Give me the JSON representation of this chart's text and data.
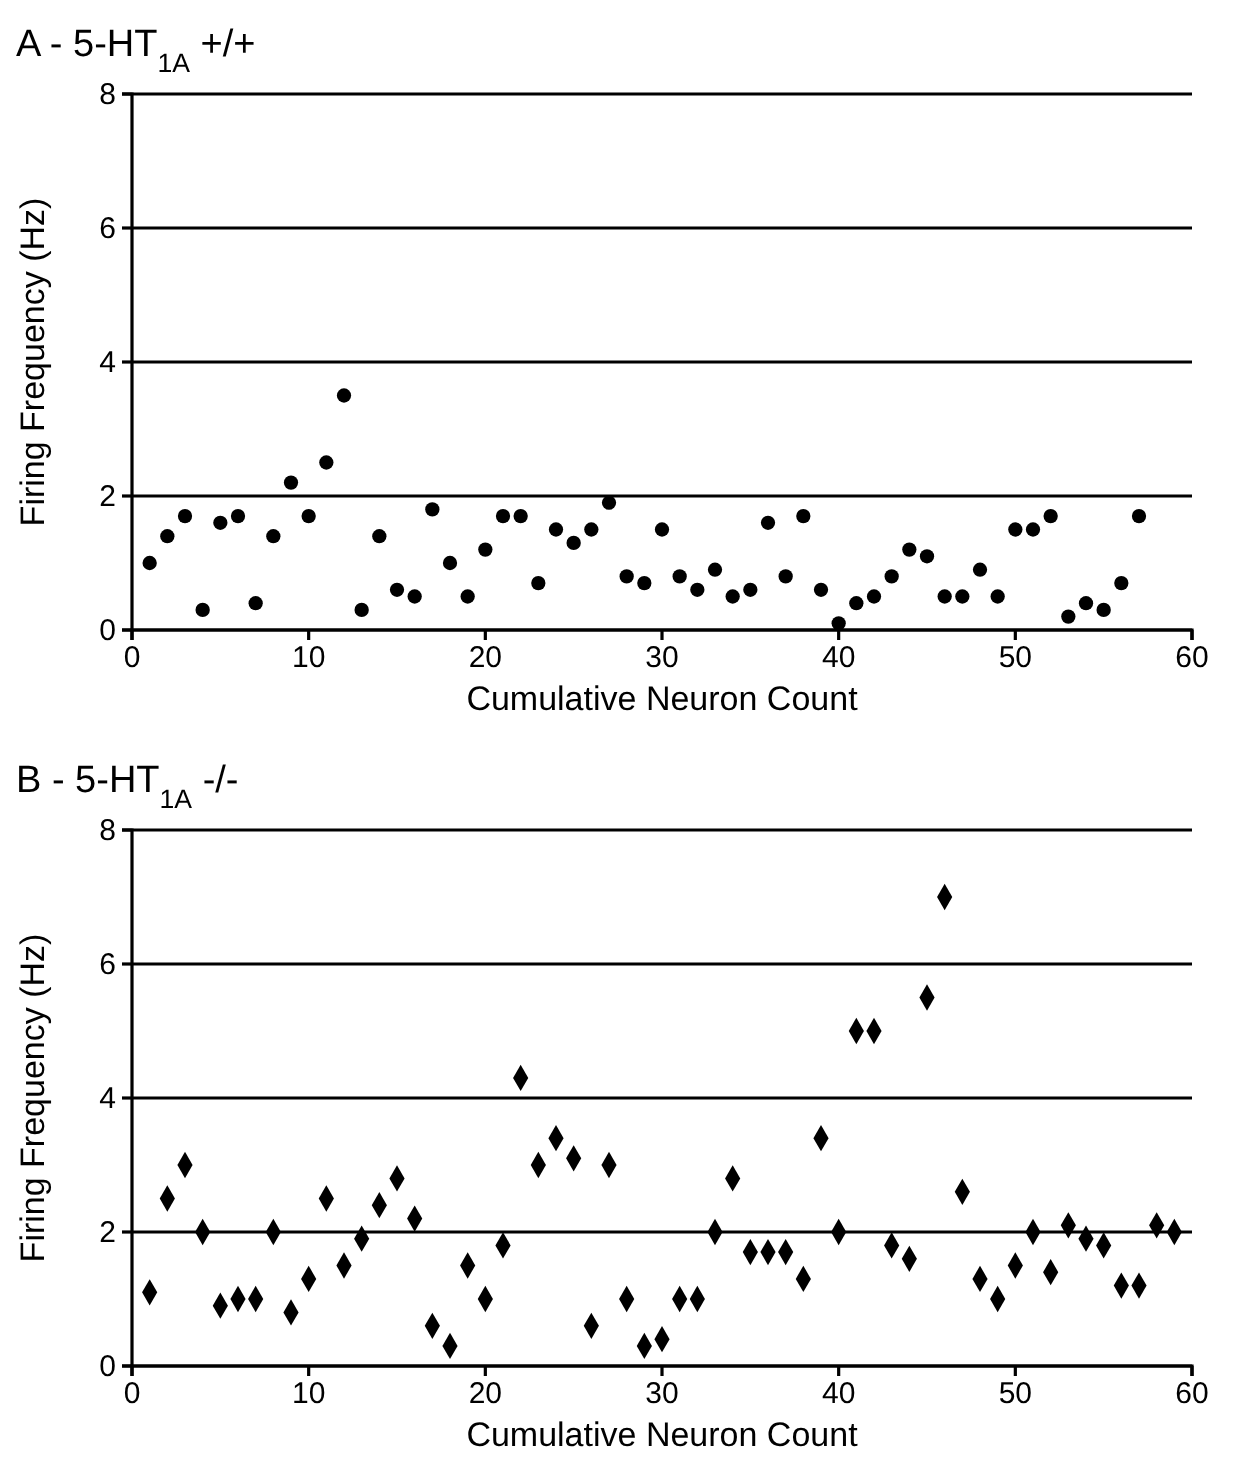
{
  "chart_data": [
    {
      "type": "scatter",
      "title": "A - 5-HT$_{1A}$ +/+",
      "xlabel": "Cumulative Neuron Count",
      "ylabel": "Firing Frequency (Hz)",
      "marker": "circle",
      "grid": "y",
      "xlim": [
        0,
        60
      ],
      "xticks": [
        0,
        10,
        20,
        30,
        40,
        50,
        60
      ],
      "ylim": [
        0,
        8
      ],
      "yticks": [
        0,
        2,
        4,
        6,
        8
      ],
      "series": [
        {
          "color": "#000000",
          "x": [
            1,
            2,
            3,
            4,
            5,
            6,
            7,
            8,
            9,
            10,
            11,
            12,
            13,
            14,
            15,
            16,
            17,
            18,
            19,
            20,
            21,
            22,
            23,
            24,
            25,
            26,
            27,
            28,
            29,
            30,
            31,
            32,
            33,
            34,
            35,
            36,
            37,
            38,
            39,
            40,
            41,
            42,
            43,
            44,
            45,
            46,
            47,
            48,
            49,
            50,
            51,
            52,
            53,
            54,
            55,
            56,
            57
          ],
          "values": [
            1.0,
            1.4,
            1.7,
            0.3,
            1.6,
            1.7,
            0.4,
            1.4,
            2.2,
            1.7,
            2.5,
            3.5,
            0.3,
            1.4,
            0.6,
            0.5,
            1.8,
            1.0,
            0.5,
            1.2,
            1.7,
            1.7,
            0.7,
            1.5,
            1.3,
            1.5,
            1.9,
            0.8,
            0.7,
            1.5,
            0.8,
            0.6,
            0.9,
            0.5,
            0.6,
            1.6,
            0.8,
            1.7,
            0.6,
            0.1,
            0.4,
            0.5,
            0.8,
            1.2,
            1.1,
            0.5,
            0.5,
            0.9,
            0.5,
            1.5,
            1.5,
            1.7,
            0.2,
            0.4,
            0.3,
            0.7,
            1.7
          ]
        }
      ]
    },
    {
      "type": "scatter",
      "title": "B - 5-HT$_{1A}$ -/-",
      "xlabel": "Cumulative Neuron Count",
      "ylabel": "Firing Frequency (Hz)",
      "marker": "diamond",
      "grid": "y",
      "xlim": [
        0,
        60
      ],
      "xticks": [
        0,
        10,
        20,
        30,
        40,
        50,
        60
      ],
      "ylim": [
        0,
        8
      ],
      "yticks": [
        0,
        2,
        4,
        6,
        8
      ],
      "series": [
        {
          "color": "#000000",
          "x": [
            1,
            2,
            3,
            4,
            5,
            6,
            7,
            8,
            9,
            10,
            11,
            12,
            13,
            14,
            15,
            16,
            17,
            18,
            19,
            20,
            21,
            22,
            23,
            24,
            25,
            26,
            27,
            28,
            29,
            30,
            31,
            32,
            33,
            34,
            35,
            36,
            37,
            38,
            39,
            40,
            41,
            42,
            43,
            44,
            45,
            46,
            47,
            48,
            49,
            50,
            51,
            52,
            53,
            54,
            55,
            56,
            57,
            58,
            59
          ],
          "values": [
            1.1,
            2.5,
            3.0,
            2.0,
            0.9,
            1.0,
            1.0,
            2.0,
            0.8,
            1.3,
            2.5,
            1.5,
            1.9,
            2.4,
            2.8,
            2.2,
            0.6,
            0.3,
            1.5,
            1.0,
            1.8,
            4.3,
            3.0,
            3.4,
            3.1,
            0.6,
            3.0,
            1.0,
            0.3,
            0.4,
            1.0,
            1.0,
            2.0,
            2.8,
            1.7,
            1.7,
            1.7,
            1.3,
            3.4,
            2.0,
            5.0,
            5.0,
            1.8,
            1.6,
            5.5,
            7.0,
            2.6,
            1.3,
            1.0,
            1.5,
            2.0,
            1.4,
            2.1,
            1.9,
            1.8,
            1.2,
            1.2,
            2.1,
            2.0
          ]
        }
      ]
    }
  ]
}
